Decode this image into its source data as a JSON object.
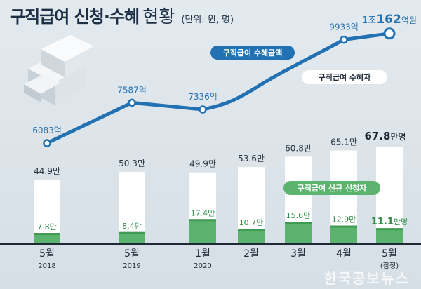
{
  "title": {
    "main": "구직급여 신청·수혜",
    "sub": "현황",
    "unit": "(단위: 원, 명)"
  },
  "watermark": "한국공보뉴스",
  "chart_data": {
    "type": "bar",
    "categories": [
      {
        "month": "5월",
        "year": "2018"
      },
      {
        "month": "5월",
        "year": "2019"
      },
      {
        "month": "1월",
        "year": "2020"
      },
      {
        "month": "2월",
        "year": ""
      },
      {
        "month": "3월",
        "year": ""
      },
      {
        "month": "4월",
        "year": ""
      },
      {
        "month": "5월",
        "year": "(잠정)"
      }
    ],
    "series": [
      {
        "name": "구직급여 수혜금액",
        "kind": "line",
        "color": "#2271b3",
        "values": [
          6083,
          7587,
          7336,
          0,
          0,
          9933,
          10162
        ],
        "value_labels": [
          "6083억",
          "7587억",
          "7336억",
          "",
          "",
          "9933억",
          "1조162억원"
        ],
        "marker_indices": [
          0,
          1,
          2,
          5,
          6
        ]
      },
      {
        "name": "구직급여 수혜자",
        "kind": "bar",
        "color": "#ffffff",
        "values": [
          44.9,
          50.3,
          49.9,
          53.6,
          60.8,
          65.1,
          67.8
        ],
        "value_labels": [
          "44.9만",
          "50.3만",
          "49.9만",
          "53.6만",
          "60.8만",
          "65.1만",
          "67.8만명"
        ]
      },
      {
        "name": "구직급여 신규 신청자",
        "kind": "bar",
        "color": "#5cb36e",
        "values": [
          7.8,
          8.4,
          17.4,
          10.7,
          15.6,
          12.9,
          11.1
        ],
        "value_labels": [
          "7.8만",
          "8.4만",
          "17.4만",
          "10.7만",
          "15.6만",
          "12.9만",
          "11.1만명"
        ]
      }
    ],
    "line_path_between": [
      {
        "from": 2,
        "to": 5,
        "via_months": [
          "2월",
          "3월"
        ]
      }
    ]
  }
}
